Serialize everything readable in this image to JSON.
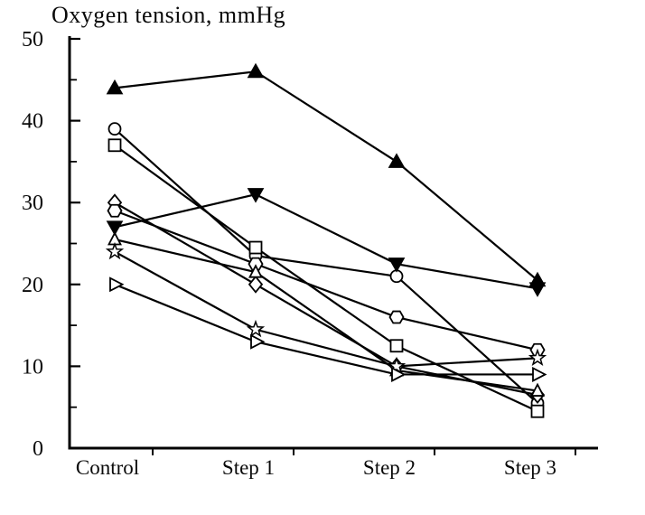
{
  "chart_data": {
    "type": "line",
    "title": "Oxygen tension, mmHg",
    "xlabel": "",
    "ylabel": "Oxygen tension, mmHg",
    "categories": [
      "Control",
      "Step 1",
      "Step 2",
      "Step 3"
    ],
    "ylim": [
      0,
      50
    ],
    "yticks_major": [
      10,
      20,
      30,
      40,
      50
    ],
    "yticks_minor": [
      5,
      15,
      25,
      35,
      45
    ],
    "ytick_labels": [
      "0",
      "10",
      "20",
      "30",
      "40",
      "50"
    ],
    "grid": false,
    "legend_position": "none",
    "line_color": "#000000",
    "marker_fill_open": "#ffffff",
    "marker_fill_solid": "#000000",
    "background": "#ffffff",
    "series": [
      {
        "name": "subject-triangle-up-filled",
        "marker": "triangle-up-filled",
        "values": [
          44,
          46,
          35,
          20.5
        ]
      },
      {
        "name": "subject-circle",
        "marker": "circle-open",
        "values": [
          39,
          23.5,
          21,
          5.5
        ]
      },
      {
        "name": "subject-square",
        "marker": "square-open",
        "values": [
          37,
          24.5,
          12.5,
          4.5
        ]
      },
      {
        "name": "subject-diamond",
        "marker": "diamond-open",
        "values": [
          30,
          20,
          10,
          6.5
        ]
      },
      {
        "name": "subject-hexagon",
        "marker": "hexagon-open",
        "values": [
          29,
          22.5,
          16,
          12
        ]
      },
      {
        "name": "subject-triangle-down-filled",
        "marker": "triangle-down-filled",
        "values": [
          27,
          31,
          22.5,
          19.5
        ]
      },
      {
        "name": "subject-triangle-up-open",
        "marker": "triangle-up-open",
        "values": [
          25.5,
          21.5,
          9.5,
          7
        ]
      },
      {
        "name": "subject-star",
        "marker": "star-open",
        "values": [
          24,
          14.5,
          10,
          11
        ]
      },
      {
        "name": "subject-triangle-right-open",
        "marker": "triangle-right-open",
        "values": [
          20,
          13,
          9,
          9
        ]
      }
    ]
  }
}
